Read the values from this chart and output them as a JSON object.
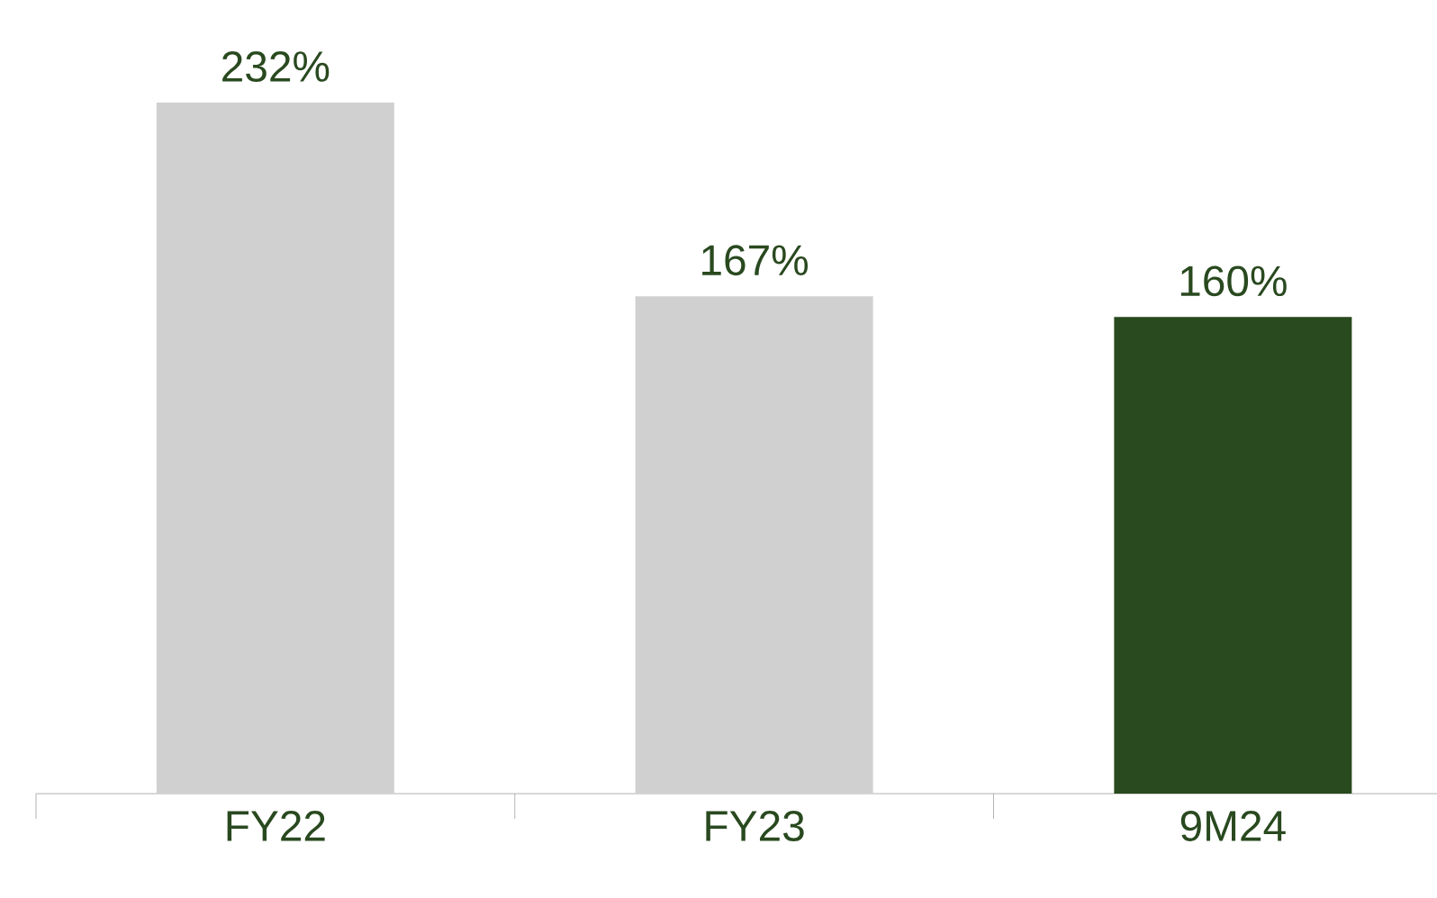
{
  "chart_data": {
    "type": "bar",
    "categories": [
      "FY22",
      "FY23",
      "9M24"
    ],
    "values": [
      232,
      167,
      160
    ],
    "value_labels": [
      "232%",
      "167%",
      "160%"
    ],
    "colors": [
      "#d0d0d0",
      "#d0d0d0",
      "#29491f"
    ],
    "tick_labels": "x"
  }
}
